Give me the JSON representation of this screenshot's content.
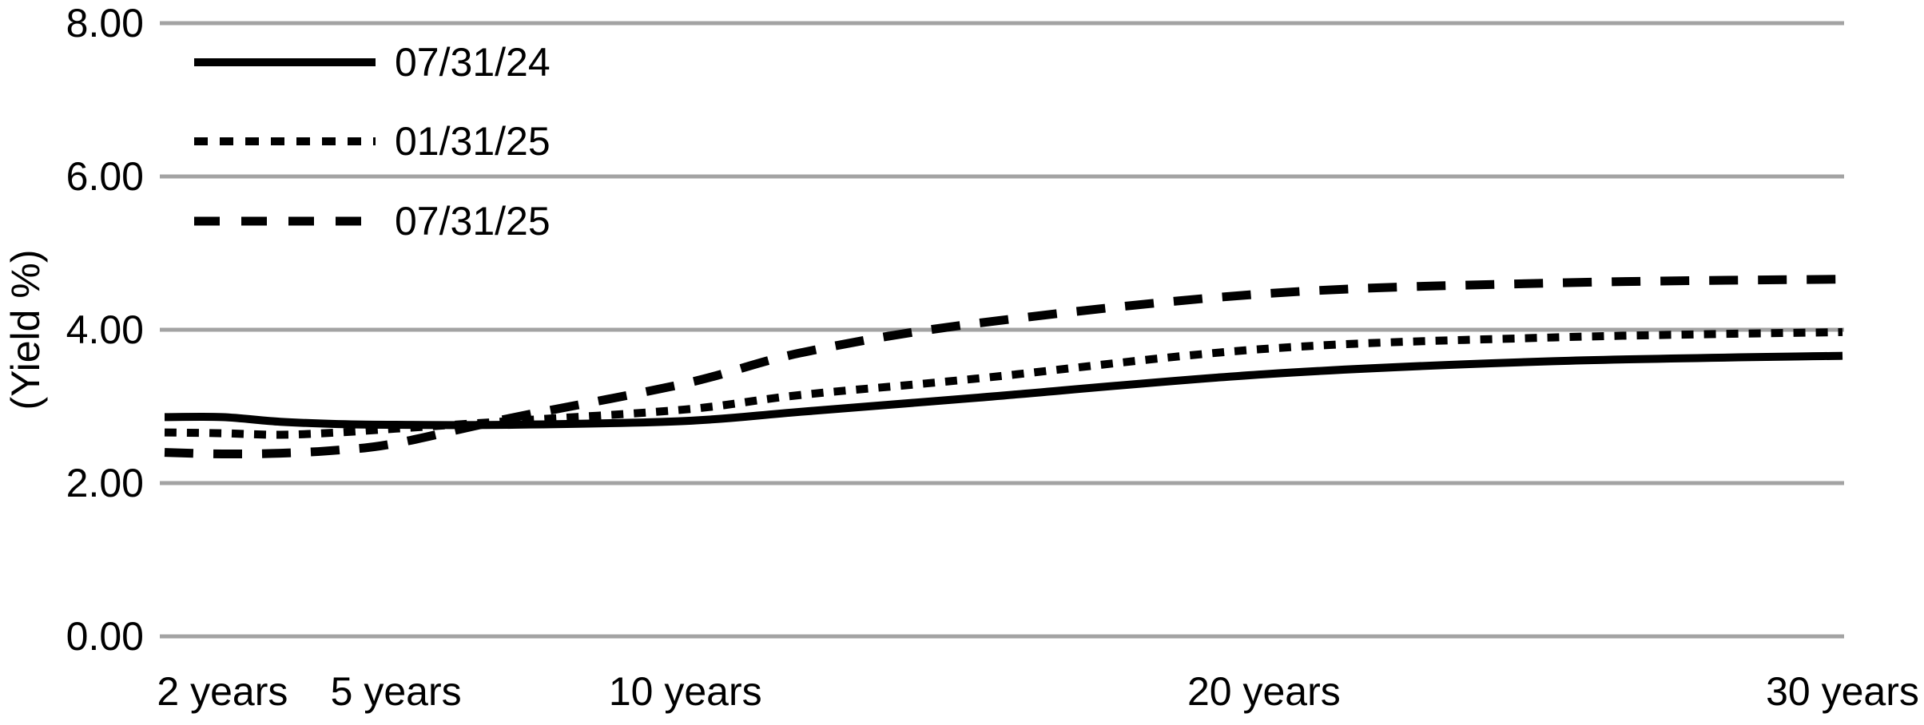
{
  "chart_data": {
    "type": "line",
    "title": "",
    "ylabel": "(Yield %)",
    "xlabel": "",
    "background_color": "#ffffff",
    "line_color": "#000000",
    "grid": {
      "horizontal": true,
      "vertical": false,
      "color": "#a3a3a3"
    },
    "legend": {
      "position": "top-left-inside",
      "entries": [
        "07/31/24",
        "01/31/25",
        "07/31/25"
      ]
    },
    "x_axis": {
      "unit": "years",
      "min": 1,
      "max": 30,
      "ticks": [
        {
          "value": 2,
          "label": "2 years"
        },
        {
          "value": 5,
          "label": "5 years"
        },
        {
          "value": 10,
          "label": "10 years"
        },
        {
          "value": 20,
          "label": "20 years"
        },
        {
          "value": 30,
          "label": "30 years"
        }
      ]
    },
    "y_axis": {
      "min": 0,
      "max": 8,
      "ticks": [
        {
          "value": 8,
          "label": "8.00"
        },
        {
          "value": 6,
          "label": "6.00"
        },
        {
          "value": 4,
          "label": "4.00"
        },
        {
          "value": 2,
          "label": "2.00"
        },
        {
          "value": 0,
          "label": "0.00"
        }
      ]
    },
    "x_years": [
      1,
      2,
      3,
      4,
      5,
      7,
      10,
      12,
      15,
      20,
      25,
      30
    ],
    "series": [
      {
        "name": "07/31/24",
        "dash": "solid",
        "values": [
          2.86,
          2.86,
          2.8,
          2.77,
          2.76,
          2.76,
          2.81,
          2.93,
          3.11,
          3.42,
          3.59,
          3.66
        ]
      },
      {
        "name": "01/31/25",
        "dash": "dotted",
        "values": [
          2.66,
          2.65,
          2.63,
          2.66,
          2.71,
          2.81,
          2.96,
          3.15,
          3.36,
          3.75,
          3.9,
          3.97
        ]
      },
      {
        "name": "07/31/25",
        "dash": "dashed",
        "values": [
          2.4,
          2.38,
          2.39,
          2.43,
          2.52,
          2.85,
          3.3,
          3.7,
          4.08,
          4.47,
          4.61,
          4.66
        ]
      }
    ]
  }
}
